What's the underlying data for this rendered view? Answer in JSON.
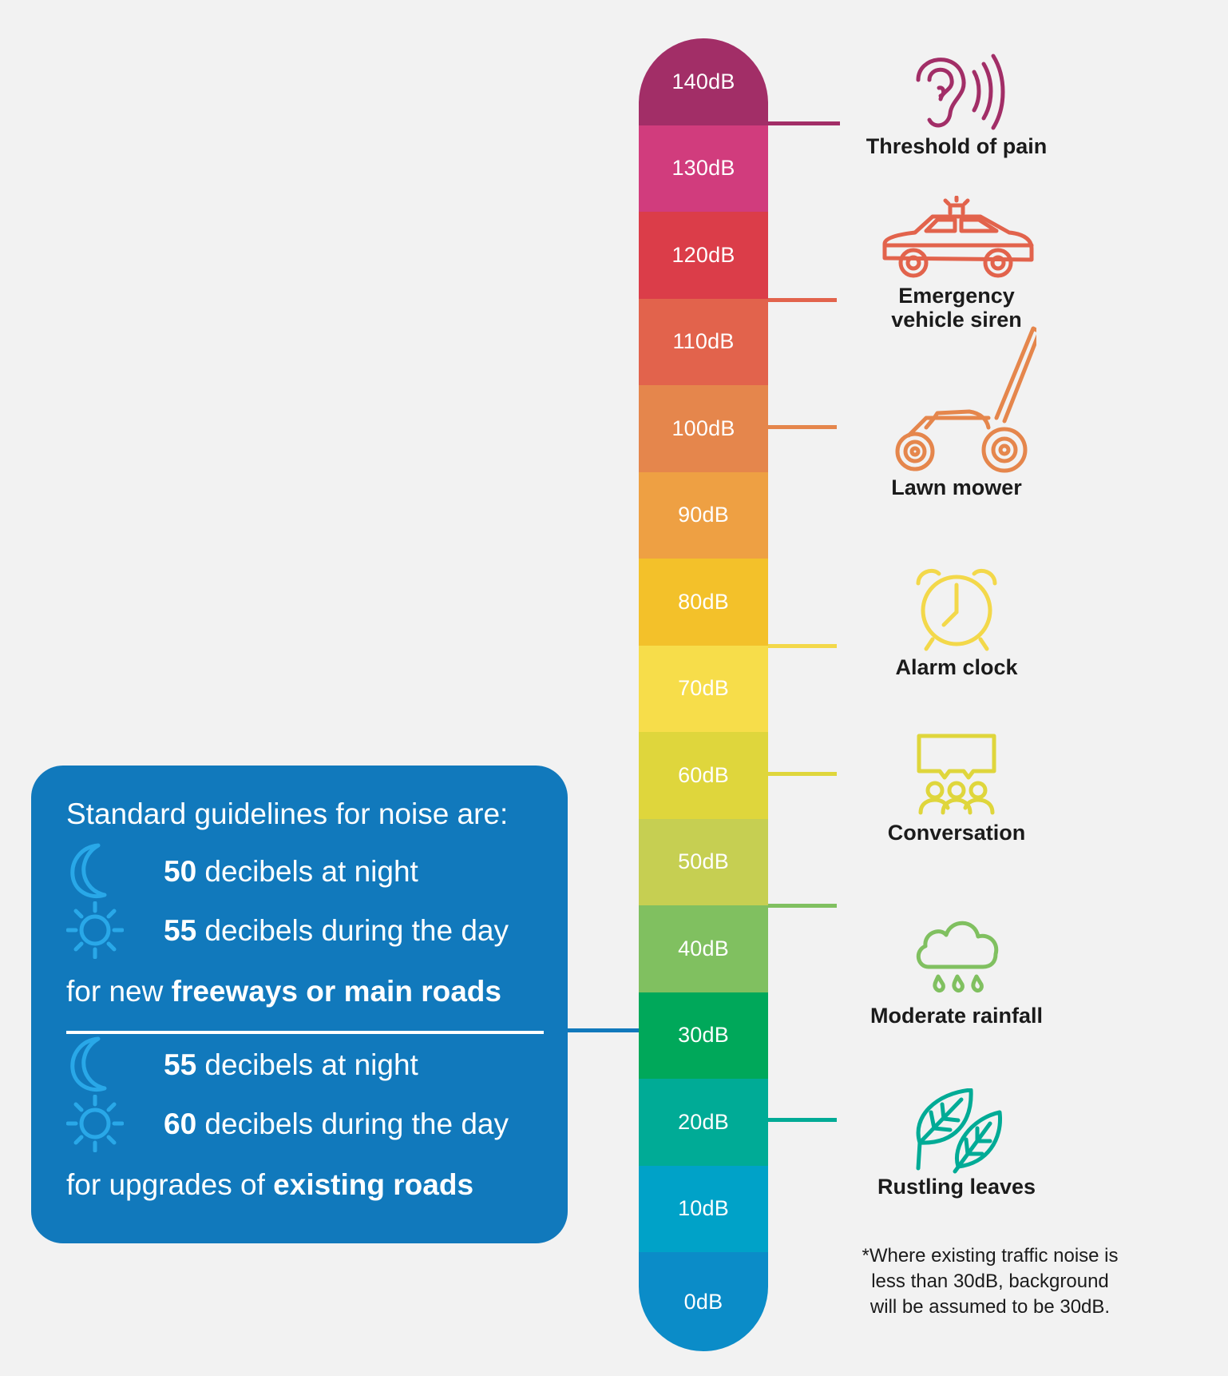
{
  "scale": {
    "levels": [
      {
        "label": "140dB",
        "color": "#a22e67"
      },
      {
        "label": "130dB",
        "color": "#d13c7d"
      },
      {
        "label": "120dB",
        "color": "#db3d49"
      },
      {
        "label": "110dB",
        "color": "#e2634c"
      },
      {
        "label": "100dB",
        "color": "#e5864c"
      },
      {
        "label": "90dB",
        "color": "#eea043"
      },
      {
        "label": "80dB",
        "color": "#f3c12a"
      },
      {
        "label": "70dB",
        "color": "#f7dd4a"
      },
      {
        "label": "60dB",
        "color": "#dfd63c"
      },
      {
        "label": "50dB",
        "color": "#c6cf52"
      },
      {
        "label": "40dB",
        "color": "#80c060"
      },
      {
        "label": "30dB",
        "color": "#00a85a"
      },
      {
        "label": "20dB",
        "color": "#00ab96"
      },
      {
        "label": "10dB",
        "color": "#00a2c8"
      },
      {
        "label": "0dB",
        "color": "#0b8cc8"
      }
    ]
  },
  "examples": [
    {
      "label": "Threshold of pain",
      "icon": "ear-icon",
      "color": "#a22e67"
    },
    {
      "label": "Emergency\nvehicle siren",
      "icon": "police-car-icon",
      "color": "#e2634c"
    },
    {
      "label": "Lawn mower",
      "icon": "lawn-mower-icon",
      "color": "#e5864c"
    },
    {
      "label": "Alarm clock",
      "icon": "alarm-clock-icon",
      "color": "#f3d84a"
    },
    {
      "label": "Conversation",
      "icon": "conversation-icon",
      "color": "#dfd63c"
    },
    {
      "label": "Moderate rainfall",
      "icon": "rain-cloud-icon",
      "color": "#80c060"
    },
    {
      "label": "Rustling leaves",
      "icon": "leaves-icon",
      "color": "#00ab96"
    }
  ],
  "footnote": "*Where existing traffic noise is\nless than 30dB, background\nwill be assumed to be 30dB.",
  "guidelines": {
    "heading": "Standard guidelines for noise are:",
    "new_roads": {
      "night_value": "50",
      "night_text": " decibels at night",
      "day_value": "55",
      "day_text": " decibels during the day",
      "footer_prefix": "for new ",
      "footer_bold": "freeways or main roads"
    },
    "existing_roads": {
      "night_value": "55",
      "night_text": " decibels at night",
      "day_value": "60",
      "day_text": " decibels during the day",
      "footer_prefix": "for upgrades of ",
      "footer_bold": "existing roads"
    },
    "accent_color": "#1179bc",
    "icon_color": "#29a8e8"
  }
}
